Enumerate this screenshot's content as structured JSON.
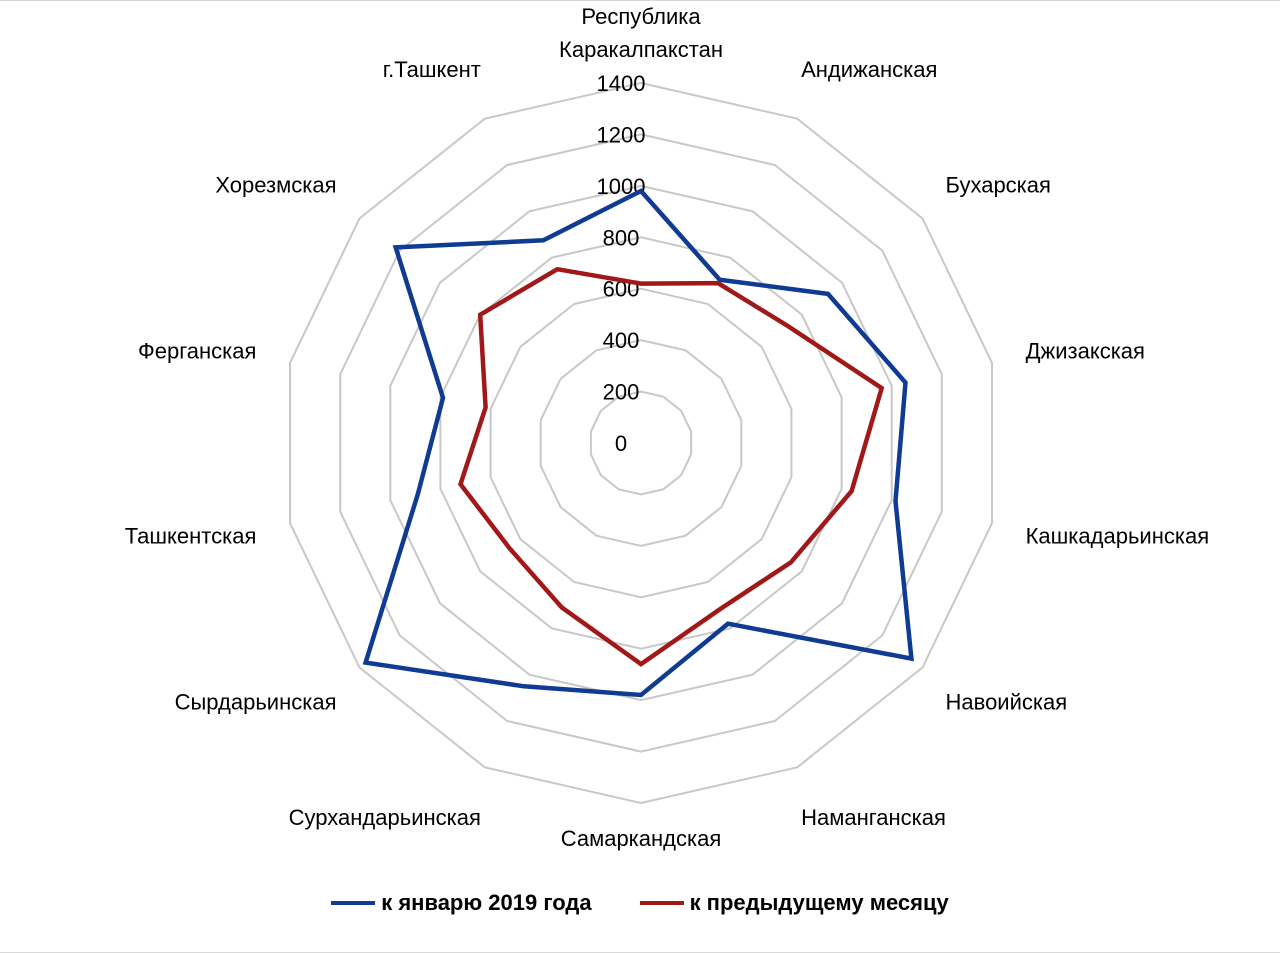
{
  "chart_data": {
    "type": "radar",
    "categories": [
      "Республика Каракалпакстан",
      "Андижанская",
      "Бухарская",
      "Джизакская",
      "Кашкадарьинская",
      "Навоийская",
      "Наманганская",
      "Самаркандская",
      "Сурхандарьинская",
      "Сырдарьинская",
      "Ташкентская",
      "Ферганская",
      "Хорезмская",
      "г.Ташкент"
    ],
    "rlim": [
      0,
      1400
    ],
    "ticks": [
      "0",
      "200",
      "400",
      "600",
      "800",
      "1000",
      "1200",
      "1400"
    ],
    "tick_values": [
      0,
      200,
      400,
      600,
      800,
      1000,
      1200,
      1400
    ],
    "grid": true,
    "legend_position": "bottom",
    "series": [
      {
        "name": "к январю 2019 года",
        "color": "#0f3b93",
        "values": [
          980,
          705,
          930,
          1055,
          1015,
          1345,
          780,
          980,
          1050,
          1370,
          890,
          790,
          1220,
          875
        ]
      },
      {
        "name": "к предыдущему месяцу",
        "color": "#a01818",
        "values": [
          620,
          690,
          730,
          960,
          840,
          745,
          715,
          860,
          710,
          655,
          720,
          620,
          800,
          750
        ]
      }
    ]
  }
}
